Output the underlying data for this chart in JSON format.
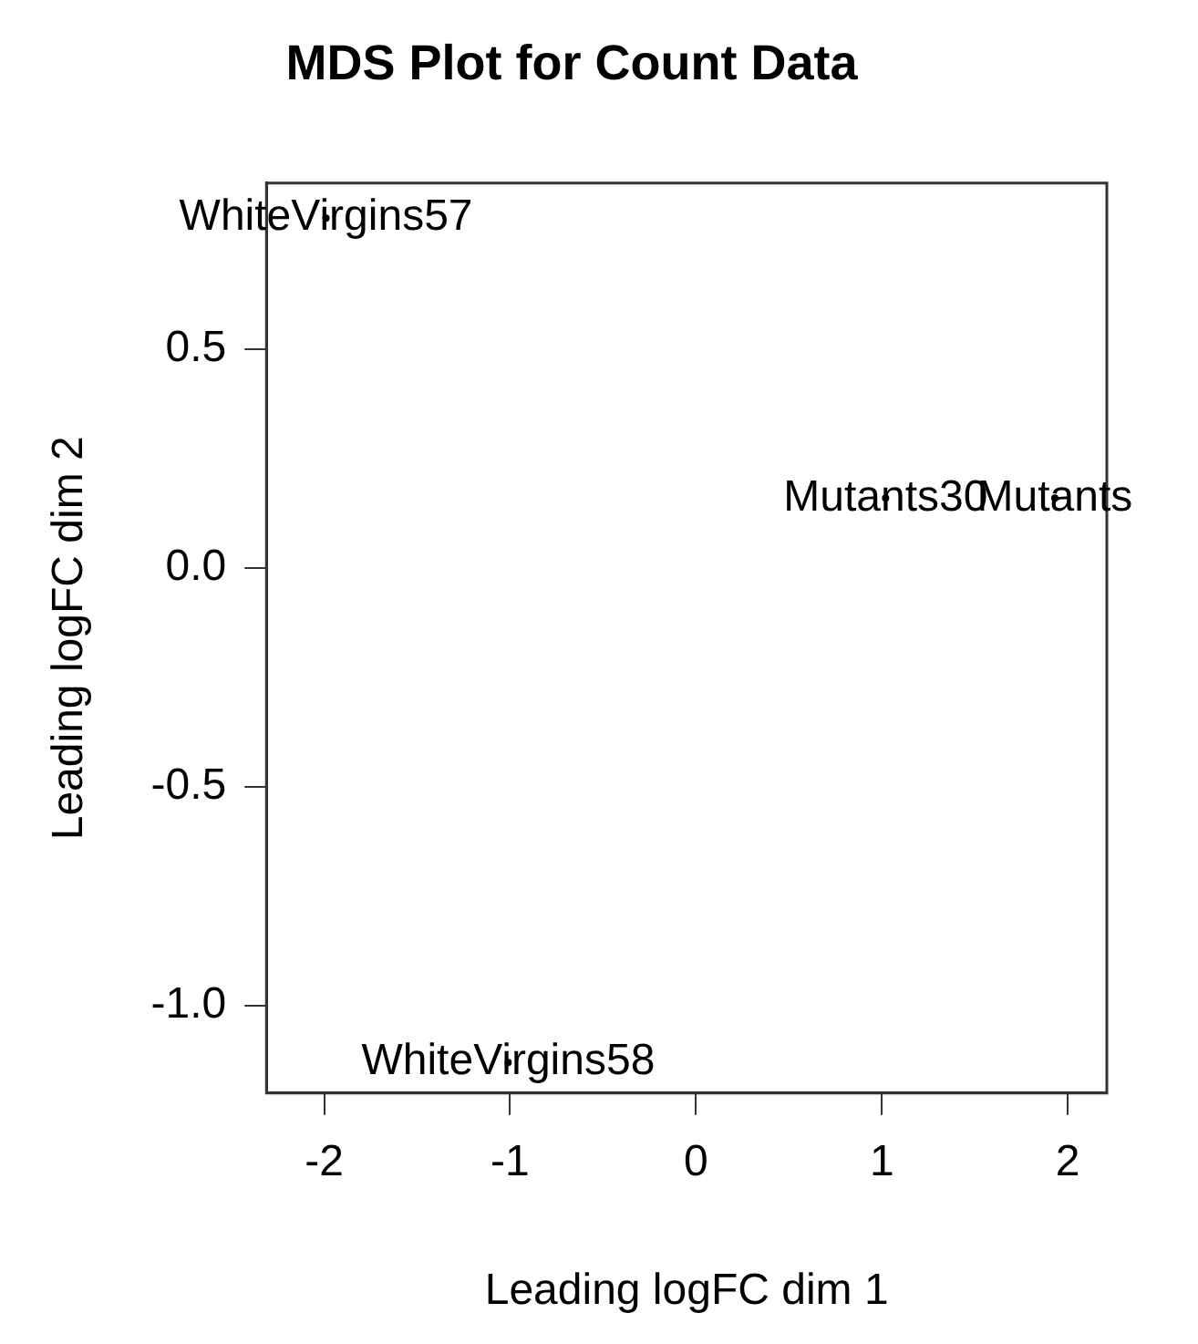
{
  "chart_data": {
    "type": "scatter",
    "title": "MDS Plot for Count Data",
    "xlabel": "Leading logFC dim 1",
    "ylabel": "Leading logFC dim 2",
    "x": [
      -1.99,
      -1.01,
      1.02,
      1.93
    ],
    "values": [
      0.8,
      -1.13,
      0.16,
      0.16
    ],
    "value_labels": [
      "WhiteVirgins57",
      "WhiteVirgins58",
      "Mutants30",
      "Mutants"
    ],
    "color": "#000000",
    "marker": "circle",
    "grid": false,
    "legend": false,
    "xlim": [
      -2.31,
      2.21
    ],
    "xticks": [
      -2,
      -1,
      {
        "value": 0,
        "label": "0"
      },
      1,
      2
    ],
    "ylim": [
      -1.2,
      0.88
    ],
    "yticks": [
      {
        "value": -1,
        "label": "-1.0"
      },
      -0.5,
      {
        "value": 0,
        "label": "0.0"
      },
      0.5
    ]
  }
}
